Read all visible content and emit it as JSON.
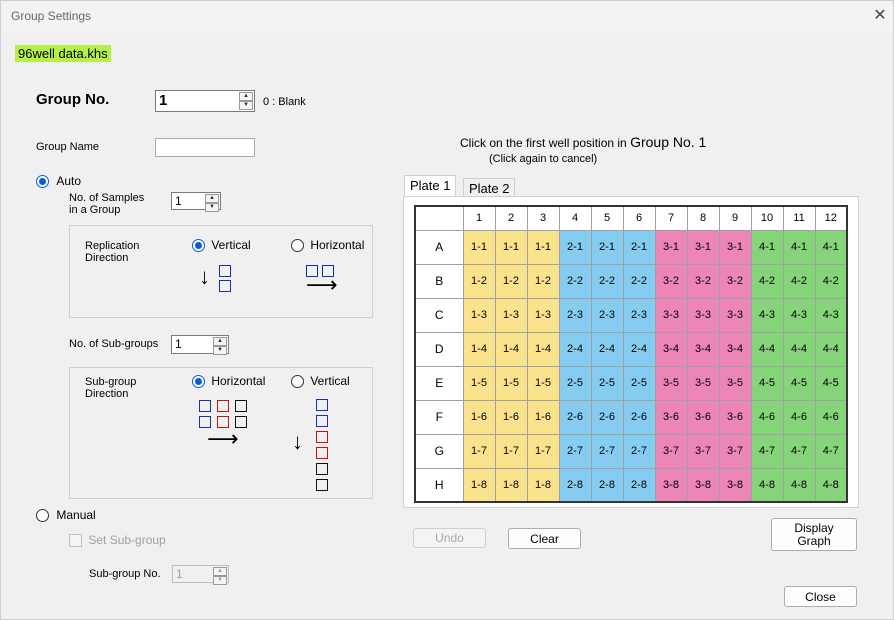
{
  "window": {
    "title": "Group Settings"
  },
  "file_name": "96well data.khs",
  "group_no": {
    "label": "Group No.",
    "value": "1",
    "hint": "0 : Blank"
  },
  "group_name": {
    "label": "Group Name",
    "value": ""
  },
  "auto": {
    "label": "Auto",
    "samples_label_1": "No. of Samples",
    "samples_label_2": "in a Group",
    "samples_value": "1",
    "replication": {
      "label_1": "Replication",
      "label_2": "Direction",
      "vertical": "Vertical",
      "horizontal": "Horizontal"
    },
    "subgroups_label": "No. of Sub-groups",
    "subgroups_value": "1",
    "subgroup_dir": {
      "label_1": "Sub-group",
      "label_2": "Direction",
      "horizontal": "Horizontal",
      "vertical": "Vertical"
    }
  },
  "manual": {
    "label": "Manual",
    "set_subgroup": "Set Sub-group",
    "subgroup_no_label": "Sub-group No.",
    "subgroup_no_value": "1"
  },
  "instruction": {
    "line1_pre": "Click on the first well position in ",
    "line1_group": "Group No. 1",
    "line2": "(Click again to cancel)"
  },
  "tabs": [
    "Plate 1",
    "Plate 2"
  ],
  "plate": {
    "columns": [
      "1",
      "2",
      "3",
      "4",
      "5",
      "6",
      "7",
      "8",
      "9",
      "10",
      "11",
      "12"
    ],
    "rows": [
      {
        "label": "A",
        "cells": [
          "1-1",
          "1-1",
          "1-1",
          "2-1",
          "2-1",
          "2-1",
          "3-1",
          "3-1",
          "3-1",
          "4-1",
          "4-1",
          "4-1"
        ]
      },
      {
        "label": "B",
        "cells": [
          "1-2",
          "1-2",
          "1-2",
          "2-2",
          "2-2",
          "2-2",
          "3-2",
          "3-2",
          "3-2",
          "4-2",
          "4-2",
          "4-2"
        ]
      },
      {
        "label": "C",
        "cells": [
          "1-3",
          "1-3",
          "1-3",
          "2-3",
          "2-3",
          "2-3",
          "3-3",
          "3-3",
          "3-3",
          "4-3",
          "4-3",
          "4-3"
        ]
      },
      {
        "label": "D",
        "cells": [
          "1-4",
          "1-4",
          "1-4",
          "2-4",
          "2-4",
          "2-4",
          "3-4",
          "3-4",
          "3-4",
          "4-4",
          "4-4",
          "4-4"
        ]
      },
      {
        "label": "E",
        "cells": [
          "1-5",
          "1-5",
          "1-5",
          "2-5",
          "2-5",
          "2-5",
          "3-5",
          "3-5",
          "3-5",
          "4-5",
          "4-5",
          "4-5"
        ]
      },
      {
        "label": "F",
        "cells": [
          "1-6",
          "1-6",
          "1-6",
          "2-6",
          "2-6",
          "2-6",
          "3-6",
          "3-6",
          "3-6",
          "4-6",
          "4-6",
          "4-6"
        ]
      },
      {
        "label": "G",
        "cells": [
          "1-7",
          "1-7",
          "1-7",
          "2-7",
          "2-7",
          "2-7",
          "3-7",
          "3-7",
          "3-7",
          "4-7",
          "4-7",
          "4-7"
        ]
      },
      {
        "label": "H",
        "cells": [
          "1-8",
          "1-8",
          "1-8",
          "2-8",
          "2-8",
          "2-8",
          "3-8",
          "3-8",
          "3-8",
          "4-8",
          "4-8",
          "4-8"
        ]
      }
    ],
    "group_colors": {
      "1": "#fbe38d",
      "2": "#85ccf0",
      "3": "#ec86b8",
      "4": "#86d47a"
    }
  },
  "buttons": {
    "undo": "Undo",
    "clear": "Clear",
    "display_graph_1": "Display",
    "display_graph_2": "Graph",
    "close": "Close"
  }
}
